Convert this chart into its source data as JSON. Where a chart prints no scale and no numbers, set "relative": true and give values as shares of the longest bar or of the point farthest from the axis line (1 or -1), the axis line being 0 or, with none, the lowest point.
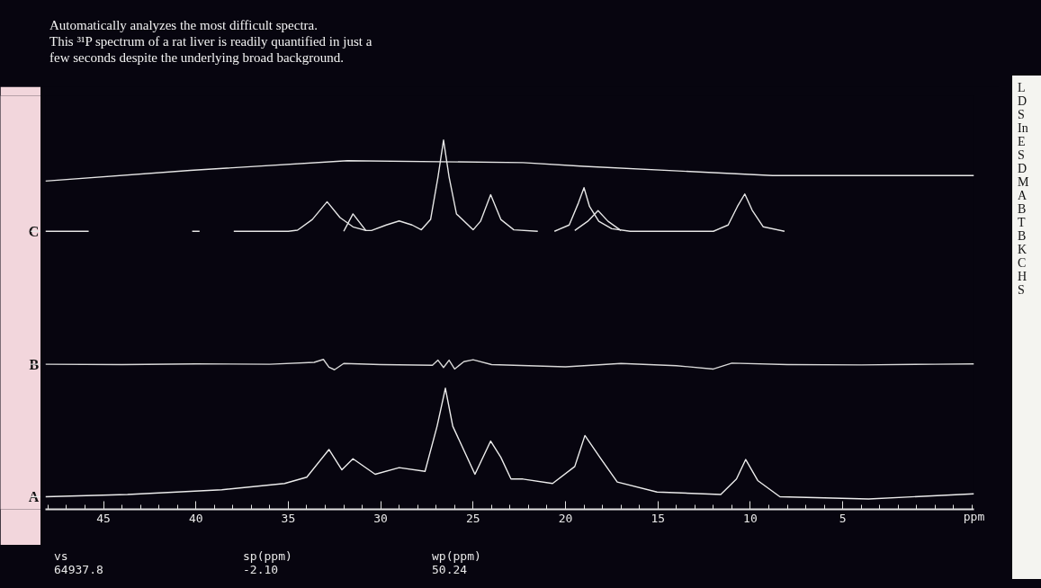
{
  "chart_data": {
    "type": "line",
    "title": "Automatically analyzes the most difficult spectra.\nThis ³¹P spectrum of a rat liver is readily quantified in just a\nfew seconds despite the underlying broad background.",
    "xlabel": "ppm",
    "xlim": [
      48.14,
      -2.1
    ],
    "xticks": [
      45,
      40,
      35,
      30,
      25,
      20,
      15,
      10,
      5
    ],
    "relative": true,
    "grid": false,
    "series": [
      {
        "name": "C",
        "color": "#e6e6e6",
        "x": [
          48.14,
          45.8,
          45.0,
          40.2,
          39.8,
          39.0,
          37.95,
          35,
          34.5,
          33.7,
          32.9,
          32.2,
          31.5,
          30.8,
          30.5,
          29.7,
          29.0,
          28.3,
          27.8,
          27.3,
          26.9,
          26.6,
          26.3,
          25.9,
          25.0,
          24.6,
          24.05,
          23.5,
          22.8,
          21.5,
          21.0,
          20.6,
          19.8,
          19.3,
          19.0,
          18.7,
          18.2,
          17.5,
          16.5,
          12,
          11.2,
          10.7,
          10.3,
          9.9,
          9.3,
          8.15
        ],
        "values": [
          0.753,
          0.753,
          null,
          0.753,
          0.753,
          null,
          0.753,
          0.753,
          0.756,
          0.785,
          0.833,
          0.79,
          0.765,
          0.755,
          0.755,
          0.77,
          0.781,
          0.77,
          0.757,
          0.785,
          0.9,
          1.0,
          0.9,
          0.8,
          0.757,
          0.78,
          0.852,
          0.785,
          0.757,
          0.753,
          null,
          0.753,
          0.77,
          0.83,
          0.871,
          0.82,
          0.78,
          0.76,
          0.753,
          0.753,
          0.77,
          0.82,
          0.854,
          0.81,
          0.765,
          0.753
        ]
      },
      {
        "color": "#e6e6e6",
        "x": [
          32.0,
          31.5,
          30.8,
          25.0,
          19.5,
          18.8,
          18.24,
          17.7,
          17.0
        ],
        "values": [
          0.753,
          0.8,
          0.755,
          null,
          0.755,
          0.78,
          0.809,
          0.78,
          0.755
        ]
      },
      {
        "color": "#e6e6e6",
        "x": [
          48.14,
          40.3,
          31.8,
          22.3,
          19.0,
          8.8,
          -2.1
        ],
        "values": [
          0.889,
          0.918,
          0.944,
          0.939,
          0.929,
          0.904,
          0.904
        ]
      },
      {
        "name": "B",
        "color": "#d8d8d8",
        "x": [
          48.14,
          44,
          40,
          36,
          33.6,
          33.1,
          32.8,
          32.5,
          32.0,
          30,
          27.2,
          26.9,
          26.6,
          26.3,
          26.0,
          25.5,
          25.0,
          24,
          22,
          20,
          17,
          14,
          12,
          11,
          8,
          4,
          0,
          -2.1
        ],
        "values": [
          0.393,
          0.392,
          0.394,
          0.393,
          0.398,
          0.406,
          0.385,
          0.378,
          0.395,
          0.392,
          0.39,
          0.404,
          0.384,
          0.404,
          0.38,
          0.4,
          0.405,
          0.392,
          0.389,
          0.386,
          0.395,
          0.389,
          0.38,
          0.396,
          0.392,
          0.391,
          0.393,
          0.394
        ]
      },
      {
        "name": "A",
        "color": "#ececec",
        "x": [
          48.14,
          43.7,
          38.6,
          35.2,
          34.0,
          32.8,
          32.1,
          31.5,
          30.3,
          29.0,
          27.6,
          26.95,
          26.5,
          26.1,
          24.9,
          24.05,
          23.5,
          22.95,
          22.3,
          20.7,
          19.5,
          18.95,
          18.2,
          17.2,
          15.05,
          11.6,
          10.75,
          10.25,
          9.6,
          8.4,
          3.6,
          -2.1
        ],
        "values": [
          0.034,
          0.04,
          0.053,
          0.07,
          0.087,
          0.162,
          0.107,
          0.137,
          0.095,
          0.113,
          0.103,
          0.225,
          0.328,
          0.225,
          0.095,
          0.185,
          0.141,
          0.082,
          0.082,
          0.07,
          0.116,
          0.2,
          0.145,
          0.074,
          0.047,
          0.04,
          0.082,
          0.135,
          0.078,
          0.034,
          0.028,
          0.042
        ]
      }
    ],
    "annotations": [
      "vs",
      "64937.8",
      "sp(ppm)",
      "-2.10",
      "wp(ppm)",
      "50.24",
      "L",
      "D",
      "S",
      "In",
      "E",
      "S",
      "D",
      "M",
      "A",
      "B",
      "T",
      "B",
      "K",
      "C",
      "H",
      "S"
    ]
  }
}
